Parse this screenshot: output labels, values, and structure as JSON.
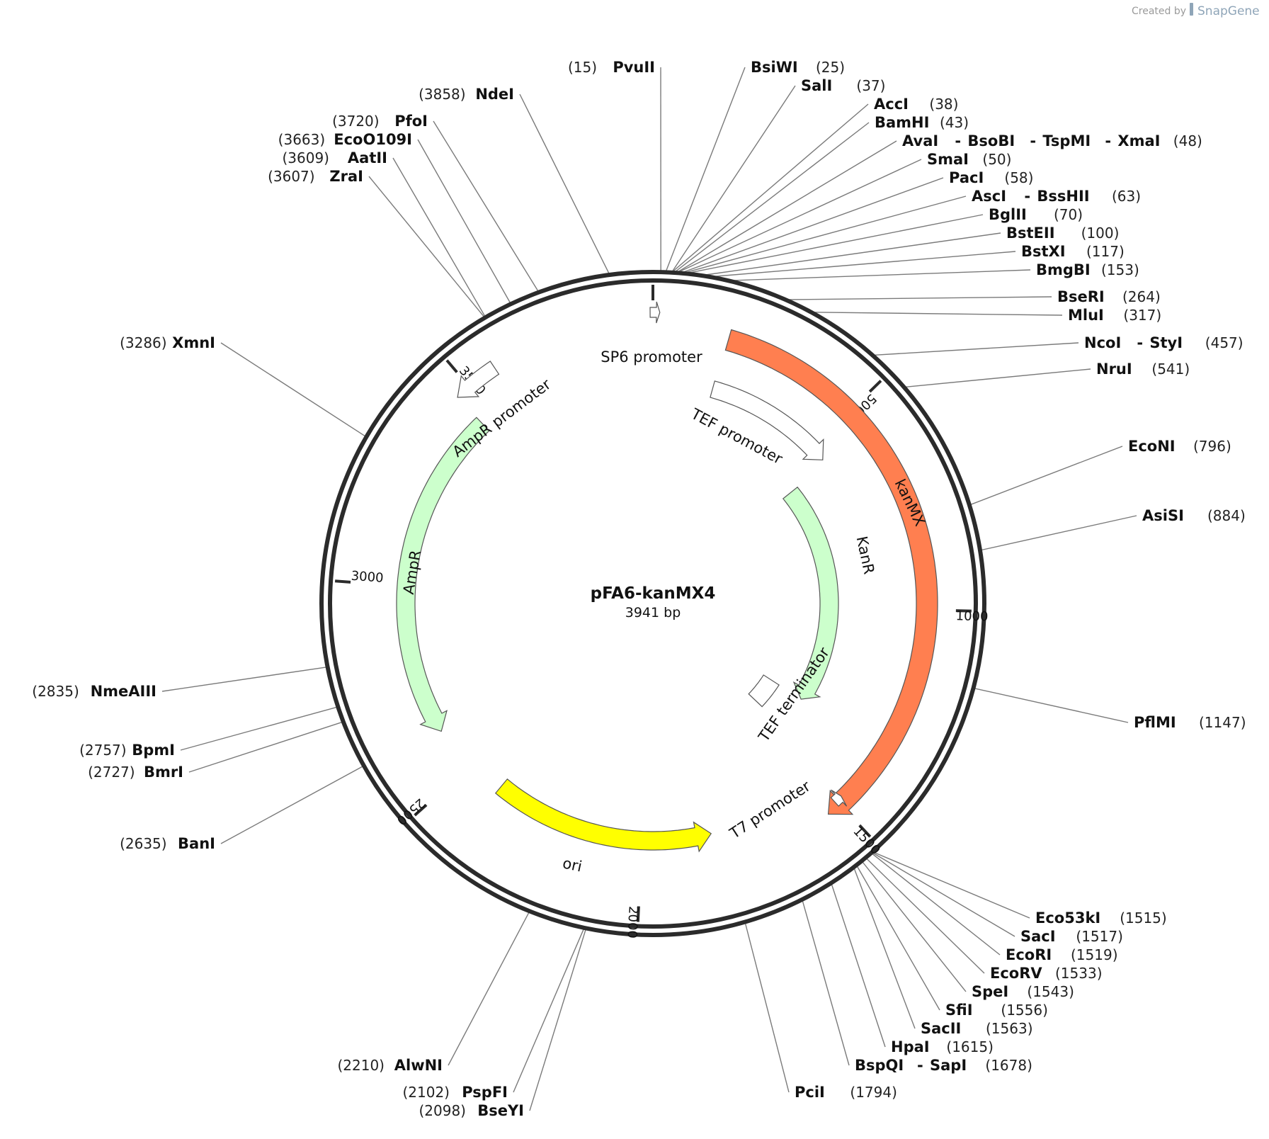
{
  "credit": {
    "prefix": "Created by",
    "brand": "SnapGene"
  },
  "plasmid": {
    "name": "pFA6-kanMX4",
    "size_label": "3941 bp",
    "length": 3941
  },
  "ticks": [
    {
      "pos": 0,
      "label": ""
    },
    {
      "pos": 500,
      "label": "500"
    },
    {
      "pos": 1000,
      "label": "1000"
    },
    {
      "pos": 1500,
      "label": "1500"
    },
    {
      "pos": 2000,
      "label": "2000"
    },
    {
      "pos": 2500,
      "label": "2500"
    },
    {
      "pos": 3000,
      "label": "3000"
    },
    {
      "pos": 3500,
      "label": "3500"
    }
  ],
  "features": [
    {
      "id": "kanmx",
      "label": "kanMX",
      "color": "#ff7f50",
      "start": 175,
      "end": 1535,
      "strand": 1
    },
    {
      "id": "kanr",
      "label": "KanR",
      "color": "#ccffcc",
      "start": 560,
      "end": 1345,
      "strand": 1
    },
    {
      "id": "tef-promoter",
      "label": "TEF promoter",
      "color": "#ffffff",
      "start": 170,
      "end": 545,
      "strand": 1
    },
    {
      "id": "tef-terminator",
      "label": "TEF terminator",
      "color": "#ffffff",
      "start": 1345,
      "end": 1460,
      "strand": 0
    },
    {
      "id": "ampr",
      "label": "AmpR",
      "color": "#ccffcc",
      "start": 2615,
      "end": 3465,
      "strand": -1
    },
    {
      "id": "ampr-promoter",
      "label": "AmpR promoter",
      "color": "#ffffff",
      "start": 3465,
      "end": 3570,
      "strand": -1
    },
    {
      "id": "ori",
      "label": "ori",
      "color": "#ffff00",
      "start": 1815,
      "end": 2405,
      "strand": -1
    },
    {
      "id": "sp6-promoter",
      "label": "SP6 promoter",
      "color": "#ffffff",
      "start": 3935,
      "end": 15,
      "strand": 1
    },
    {
      "id": "t7-promoter",
      "label": "T7 promoter",
      "color": "#ffffff",
      "start": 1485,
      "end": 1505,
      "strand": -1
    }
  ],
  "sites": [
    {
      "pos": 15,
      "label_pos": "(15)",
      "names": [
        "PvuII"
      ],
      "side": "left"
    },
    {
      "pos": 25,
      "label_pos": "(25)",
      "names": [
        "BsiWI"
      ],
      "side": "right"
    },
    {
      "pos": 37,
      "label_pos": "(37)",
      "names": [
        "SalI"
      ],
      "side": "right"
    },
    {
      "pos": 38,
      "label_pos": "(38)",
      "names": [
        "AccI"
      ],
      "side": "right"
    },
    {
      "pos": 43,
      "label_pos": "(43)",
      "names": [
        "BamHI"
      ],
      "side": "right"
    },
    {
      "pos": 48,
      "label_pos": "(48)",
      "names": [
        "AvaI",
        "BsoBI",
        "TspMI",
        "XmaI"
      ],
      "side": "right"
    },
    {
      "pos": 50,
      "label_pos": "(50)",
      "names": [
        "SmaI"
      ],
      "side": "right"
    },
    {
      "pos": 58,
      "label_pos": "(58)",
      "names": [
        "PacI"
      ],
      "side": "right"
    },
    {
      "pos": 63,
      "label_pos": "(63)",
      "names": [
        "AscI",
        "BssHII"
      ],
      "side": "right"
    },
    {
      "pos": 70,
      "label_pos": "(70)",
      "names": [
        "BglII"
      ],
      "side": "right"
    },
    {
      "pos": 100,
      "label_pos": "(100)",
      "names": [
        "BstEII"
      ],
      "side": "right"
    },
    {
      "pos": 117,
      "label_pos": "(117)",
      "names": [
        "BstXI"
      ],
      "side": "right"
    },
    {
      "pos": 153,
      "label_pos": "(153)",
      "names": [
        "BmgBI"
      ],
      "side": "right"
    },
    {
      "pos": 264,
      "label_pos": "(264)",
      "names": [
        "BseRI"
      ],
      "side": "right"
    },
    {
      "pos": 317,
      "label_pos": "(317)",
      "names": [
        "MluI"
      ],
      "side": "right"
    },
    {
      "pos": 457,
      "label_pos": "(457)",
      "names": [
        "NcoI",
        "StyI"
      ],
      "side": "right"
    },
    {
      "pos": 541,
      "label_pos": "(541)",
      "names": [
        "NruI"
      ],
      "side": "right"
    },
    {
      "pos": 796,
      "label_pos": "(796)",
      "names": [
        "EcoNI"
      ],
      "side": "right"
    },
    {
      "pos": 884,
      "label_pos": "(884)",
      "names": [
        "AsiSI"
      ],
      "side": "right"
    },
    {
      "pos": 1147,
      "label_pos": "(1147)",
      "names": [
        "PflMI"
      ],
      "side": "right"
    },
    {
      "pos": 1515,
      "label_pos": "(1515)",
      "names": [
        "Eco53kI"
      ],
      "side": "right"
    },
    {
      "pos": 1517,
      "label_pos": "(1517)",
      "names": [
        "SacI"
      ],
      "side": "right"
    },
    {
      "pos": 1519,
      "label_pos": "(1519)",
      "names": [
        "EcoRI"
      ],
      "side": "right"
    },
    {
      "pos": 1533,
      "label_pos": "(1533)",
      "names": [
        "EcoRV"
      ],
      "side": "right"
    },
    {
      "pos": 1543,
      "label_pos": "(1543)",
      "names": [
        "SpeI"
      ],
      "side": "right"
    },
    {
      "pos": 1556,
      "label_pos": "(1556)",
      "names": [
        "SfiI"
      ],
      "side": "right"
    },
    {
      "pos": 1563,
      "label_pos": "(1563)",
      "names": [
        "SacII"
      ],
      "side": "right"
    },
    {
      "pos": 1615,
      "label_pos": "(1615)",
      "names": [
        "HpaI"
      ],
      "side": "right"
    },
    {
      "pos": 1678,
      "label_pos": "(1678)",
      "names": [
        "BspQI",
        "SapI"
      ],
      "side": "right"
    },
    {
      "pos": 1794,
      "label_pos": "(1794)",
      "names": [
        "PciI"
      ],
      "side": "right"
    },
    {
      "pos": 2098,
      "label_pos": "(2098)",
      "names": [
        "BseYI"
      ],
      "side": "left"
    },
    {
      "pos": 2102,
      "label_pos": "(2102)",
      "names": [
        "PspFI"
      ],
      "side": "left"
    },
    {
      "pos": 2210,
      "label_pos": "(2210)",
      "names": [
        "AlwNI"
      ],
      "side": "left"
    },
    {
      "pos": 2635,
      "label_pos": "(2635)",
      "names": [
        "BanI"
      ],
      "side": "left"
    },
    {
      "pos": 2727,
      "label_pos": "(2727)",
      "names": [
        "BmrI"
      ],
      "side": "left"
    },
    {
      "pos": 2757,
      "label_pos": "(2757)",
      "names": [
        "BpmI"
      ],
      "side": "left"
    },
    {
      "pos": 2835,
      "label_pos": "(2835)",
      "names": [
        "NmeAIII"
      ],
      "side": "left"
    },
    {
      "pos": 3286,
      "label_pos": "(3286)",
      "names": [
        "XmnI"
      ],
      "side": "left"
    },
    {
      "pos": 3607,
      "label_pos": "(3607)",
      "names": [
        "ZraI"
      ],
      "side": "left"
    },
    {
      "pos": 3609,
      "label_pos": "(3609)",
      "names": [
        "AatII"
      ],
      "side": "left"
    },
    {
      "pos": 3663,
      "label_pos": "(3663)",
      "names": [
        "EcoO109I"
      ],
      "side": "left"
    },
    {
      "pos": 3720,
      "label_pos": "(3720)",
      "names": [
        "PfoI"
      ],
      "side": "left"
    },
    {
      "pos": 3858,
      "label_pos": "(3858)",
      "names": [
        "NdeI"
      ],
      "side": "left"
    }
  ]
}
